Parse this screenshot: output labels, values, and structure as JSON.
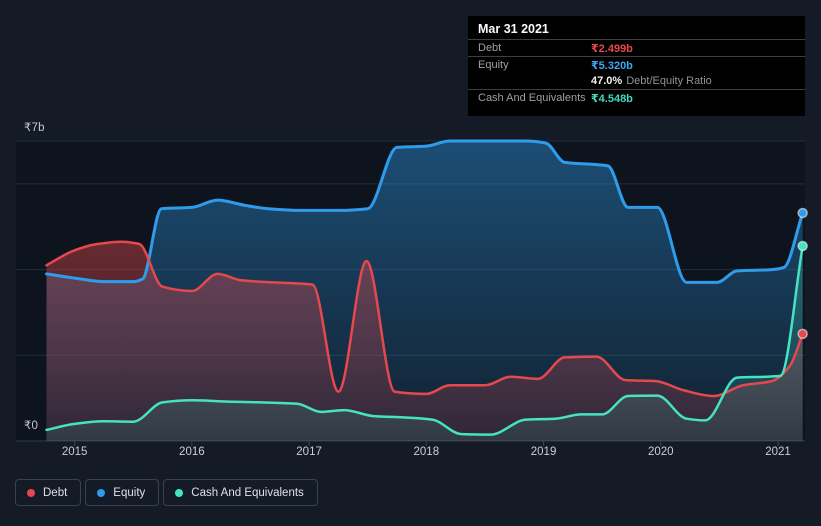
{
  "tooltip": {
    "date": "Mar 31 2021",
    "debt_label": "Debt",
    "debt_value": "₹2.499b",
    "equity_label": "Equity",
    "equity_value": "₹5.320b",
    "ratio_value": "47.0%",
    "ratio_label": "Debt/Equity Ratio",
    "cash_label": "Cash And Equivalents",
    "cash_value": "₹4.548b"
  },
  "axes": {
    "y_top_label": "₹7b",
    "y_bottom_label": "₹0"
  },
  "legend": {
    "items": [
      {
        "label": "Debt",
        "color": "#e5484d"
      },
      {
        "label": "Equity",
        "color": "#2f9ceb"
      },
      {
        "label": "Cash And Equivalents",
        "color": "#46e3c3"
      }
    ]
  },
  "colors": {
    "page_bg": "#151b26",
    "plot_bg": "#0e141d",
    "grid_line": "#242c39",
    "axis_line": "#313b49",
    "tick": "#3c4554",
    "debt": "#e5484d",
    "equity": "#2f9ceb",
    "cash": "#46e3c3"
  },
  "chart_data": {
    "type": "area",
    "title": "Debt, Equity and Cash And Equivalents history (₹ billions)",
    "x_domain": [
      2014.5,
      2021.23
    ],
    "y_domain": [
      0,
      7
    ],
    "y_gridlines": [
      7,
      6,
      4,
      2,
      0
    ],
    "x_ticks": [
      {
        "label": "2015",
        "value": 2015
      },
      {
        "label": "2016",
        "value": 2016
      },
      {
        "label": "2017",
        "value": 2017
      },
      {
        "label": "2018",
        "value": 2018
      },
      {
        "label": "2019",
        "value": 2019
      },
      {
        "label": "2020",
        "value": 2020
      },
      {
        "label": "2021",
        "value": 2021
      }
    ],
    "series": [
      {
        "key": "equity",
        "name": "Equity",
        "color": "#2f9ceb",
        "line_width": 3,
        "fill_opacity": [
          0.42,
          0.1
        ],
        "points": [
          [
            2014.76,
            3.9
          ],
          [
            2015.0,
            3.8
          ],
          [
            2015.25,
            3.72
          ],
          [
            2015.5,
            3.72
          ],
          [
            2015.58,
            3.78
          ],
          [
            2015.74,
            5.42
          ],
          [
            2016.0,
            5.45
          ],
          [
            2016.22,
            5.62
          ],
          [
            2016.45,
            5.5
          ],
          [
            2016.65,
            5.42
          ],
          [
            2016.95,
            5.38
          ],
          [
            2017.25,
            5.38
          ],
          [
            2017.5,
            5.42
          ],
          [
            2017.75,
            6.85
          ],
          [
            2018.0,
            6.88
          ],
          [
            2018.2,
            7.0
          ],
          [
            2018.55,
            7.0
          ],
          [
            2018.85,
            7.0
          ],
          [
            2019.02,
            6.95
          ],
          [
            2019.18,
            6.5
          ],
          [
            2019.45,
            6.45
          ],
          [
            2019.55,
            6.42
          ],
          [
            2019.72,
            5.45
          ],
          [
            2019.97,
            5.45
          ],
          [
            2020.22,
            3.7
          ],
          [
            2020.48,
            3.7
          ],
          [
            2020.65,
            3.97
          ],
          [
            2020.95,
            4.0
          ],
          [
            2021.05,
            4.05
          ],
          [
            2021.21,
            5.32
          ]
        ]
      },
      {
        "key": "debt",
        "name": "Debt",
        "color": "#e5484d",
        "line_width": 2.5,
        "fill_opacity": [
          0.42,
          0.14
        ],
        "points": [
          [
            2014.76,
            4.1
          ],
          [
            2015.0,
            4.45
          ],
          [
            2015.2,
            4.6
          ],
          [
            2015.4,
            4.65
          ],
          [
            2015.55,
            4.6
          ],
          [
            2015.75,
            3.6
          ],
          [
            2016.0,
            3.5
          ],
          [
            2016.22,
            3.9
          ],
          [
            2016.42,
            3.75
          ],
          [
            2016.7,
            3.7
          ],
          [
            2017.03,
            3.65
          ],
          [
            2017.25,
            1.15
          ],
          [
            2017.49,
            4.2
          ],
          [
            2017.73,
            1.15
          ],
          [
            2018.0,
            1.1
          ],
          [
            2018.2,
            1.3
          ],
          [
            2018.5,
            1.3
          ],
          [
            2018.72,
            1.5
          ],
          [
            2018.95,
            1.45
          ],
          [
            2019.18,
            1.95
          ],
          [
            2019.45,
            1.97
          ],
          [
            2019.7,
            1.42
          ],
          [
            2019.95,
            1.4
          ],
          [
            2020.2,
            1.18
          ],
          [
            2020.45,
            1.05
          ],
          [
            2020.7,
            1.3
          ],
          [
            2020.95,
            1.4
          ],
          [
            2021.1,
            1.75
          ],
          [
            2021.21,
            2.5
          ]
        ]
      },
      {
        "key": "cash",
        "name": "Cash And Equivalents",
        "color": "#46e3c3",
        "line_width": 2.5,
        "fill_opacity": [
          0.26,
          0.1
        ],
        "points": [
          [
            2014.76,
            0.26
          ],
          [
            2015.0,
            0.4
          ],
          [
            2015.25,
            0.46
          ],
          [
            2015.5,
            0.45
          ],
          [
            2015.75,
            0.9
          ],
          [
            2016.0,
            0.95
          ],
          [
            2016.3,
            0.92
          ],
          [
            2016.6,
            0.9
          ],
          [
            2016.9,
            0.87
          ],
          [
            2017.1,
            0.68
          ],
          [
            2017.3,
            0.72
          ],
          [
            2017.55,
            0.58
          ],
          [
            2017.8,
            0.55
          ],
          [
            2018.05,
            0.5
          ],
          [
            2018.3,
            0.16
          ],
          [
            2018.55,
            0.15
          ],
          [
            2018.85,
            0.5
          ],
          [
            2019.1,
            0.52
          ],
          [
            2019.32,
            0.62
          ],
          [
            2019.5,
            0.62
          ],
          [
            2019.72,
            1.05
          ],
          [
            2019.97,
            1.06
          ],
          [
            2020.22,
            0.52
          ],
          [
            2020.38,
            0.48
          ],
          [
            2020.65,
            1.48
          ],
          [
            2020.9,
            1.5
          ],
          [
            2021.02,
            1.52
          ],
          [
            2021.21,
            4.55
          ]
        ]
      }
    ]
  }
}
